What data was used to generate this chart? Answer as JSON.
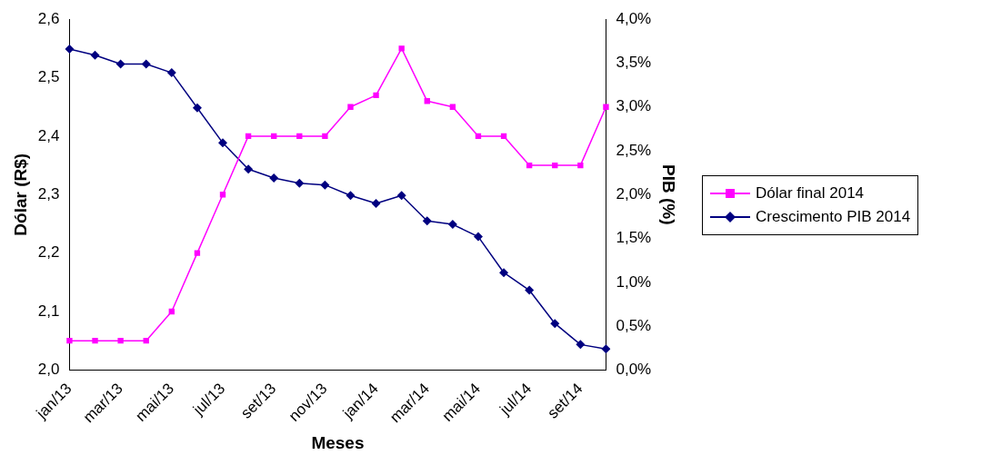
{
  "chart_data": {
    "type": "line",
    "xlabel": "Meses",
    "ylabel": "Dólar (R$)",
    "y2label": "PIB (%)",
    "categories": [
      "jan/13",
      null,
      "mar/13",
      null,
      "mai/13",
      null,
      "jul/13",
      null,
      "set/13",
      null,
      "nov/13",
      null,
      "jan/14",
      null,
      "mar/14",
      null,
      "mai/14",
      null,
      "jul/14",
      null,
      "set/14",
      null
    ],
    "series": [
      {
        "name": "Dólar final 2014",
        "color": "#ff00ff",
        "marker": "square",
        "values": [
          2.05,
          2.05,
          2.05,
          2.05,
          2.1,
          2.2,
          2.3,
          2.4,
          2.4,
          2.4,
          2.4,
          2.45,
          2.47,
          2.55,
          2.46,
          2.45,
          2.4,
          2.4,
          2.35,
          2.35,
          2.35,
          2.45
        ]
      },
      {
        "name": "Crescimento PIB 2014",
        "color": "#000080",
        "marker": "diamond",
        "axis": "y2",
        "values": [
          3.66,
          3.59,
          3.49,
          3.49,
          3.39,
          2.99,
          2.59,
          2.29,
          2.19,
          2.13,
          2.11,
          1.99,
          1.9,
          1.99,
          1.7,
          1.66,
          1.52,
          1.11,
          0.91,
          0.53,
          0.29,
          0.24
        ]
      }
    ],
    "ylim": [
      2.0,
      2.6
    ],
    "yticks": [
      {
        "value": 2.0,
        "label": "2,0"
      },
      {
        "value": 2.1,
        "label": "2,1"
      },
      {
        "value": 2.2,
        "label": "2,2"
      },
      {
        "value": 2.3,
        "label": "2,3"
      },
      {
        "value": 2.4,
        "label": "2,4"
      },
      {
        "value": 2.5,
        "label": "2,5"
      },
      {
        "value": 2.6,
        "label": "2,6"
      }
    ],
    "y2lim": [
      0,
      4
    ],
    "y2ticks": [
      {
        "value": 0,
        "label": "0,0%"
      },
      {
        "value": 0.5,
        "label": "0,5%"
      },
      {
        "value": 1,
        "label": "1,0%"
      },
      {
        "value": 1.5,
        "label": "1,5%"
      },
      {
        "value": 2,
        "label": "2,0%"
      },
      {
        "value": 2.5,
        "label": "2,5%"
      },
      {
        "value": 3,
        "label": "3,0%"
      },
      {
        "value": 3.5,
        "label": "3,5%"
      },
      {
        "value": 4,
        "label": "4,0%"
      }
    ],
    "grid": false,
    "legend": "right"
  }
}
